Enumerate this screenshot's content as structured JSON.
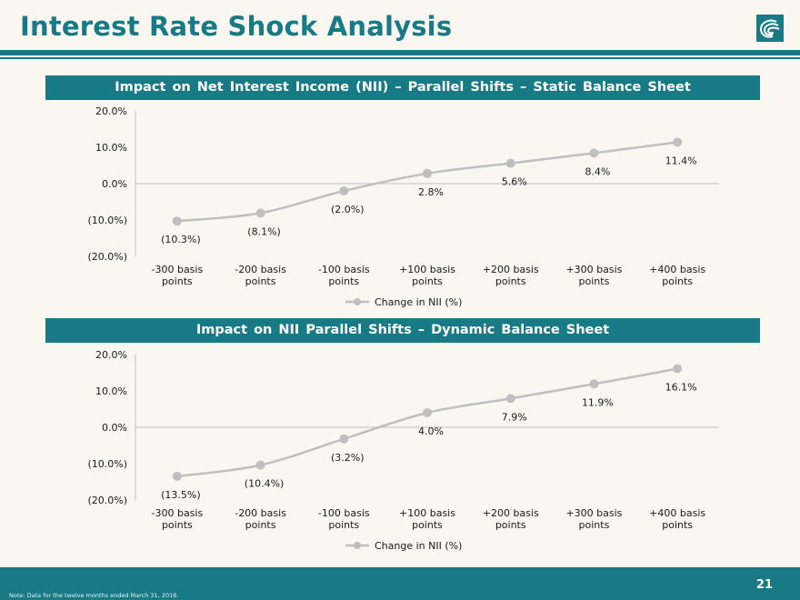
{
  "page": {
    "title": "Interest Rate Shock Analysis",
    "page_number": "21",
    "note": "Note: Data for the twelve months ended March 31, 2018.",
    "logo": "company-logo-icon"
  },
  "colors": {
    "brand": "#177a85",
    "line": "#bfbfbf",
    "marker": "#bfbfbf",
    "background": "#faf7f1"
  },
  "chart_data": [
    {
      "type": "line",
      "title": "Impact on Net Interest Income (NII) – Parallel Shifts – Static Balance Sheet",
      "categories": [
        "-300 basis points",
        "-200 basis points",
        "-100 basis points",
        "+100 basis points",
        "+200 basis points",
        "+300 basis points",
        "+400 basis points"
      ],
      "category_lines": [
        [
          "-300 basis",
          "points"
        ],
        [
          "-200 basis",
          "points"
        ],
        [
          "-100 basis",
          "points"
        ],
        [
          "+100 basis",
          "points"
        ],
        [
          "+200 basis",
          "points"
        ],
        [
          "+300 basis",
          "points"
        ],
        [
          "+400 basis",
          "points"
        ]
      ],
      "series": [
        {
          "name": "Change in NII (%)",
          "values": [
            -10.3,
            -8.1,
            -2.0,
            2.8,
            5.6,
            8.4,
            11.4
          ]
        }
      ],
      "data_labels": [
        "(10.3%)",
        "(8.1%)",
        "(2.0%)",
        "2.8%",
        "5.6%",
        "8.4%",
        "11.4%"
      ],
      "y_ticks": [
        20,
        10,
        0,
        -10,
        -20
      ],
      "y_tick_labels": [
        "20.0%",
        "10.0%",
        "0.0%",
        "(10.0%)",
        "(20.0%)"
      ],
      "ylim": [
        -20,
        20
      ],
      "grid": false,
      "legend": "bottom",
      "smooth": true
    },
    {
      "type": "line",
      "title": "Impact on NII Parallel Shifts – Dynamic Balance Sheet",
      "categories": [
        "-300 basis points",
        "-200 basis points",
        "-100 basis points",
        "+100 basis points",
        "+200 basis points",
        "+300 basis points",
        "+400 basis points"
      ],
      "category_lines": [
        [
          "-300 basis",
          "points"
        ],
        [
          "-200 basis",
          "points"
        ],
        [
          "-100 basis",
          "points"
        ],
        [
          "+100 basis",
          "points"
        ],
        [
          "+200 basis",
          "points"
        ],
        [
          "+300 basis",
          "points"
        ],
        [
          "+400 basis",
          "points"
        ]
      ],
      "series": [
        {
          "name": "Change in NII (%)",
          "values": [
            -13.5,
            -10.4,
            -3.2,
            4.0,
            7.9,
            11.9,
            16.1
          ]
        }
      ],
      "data_labels": [
        "(13.5%)",
        "(10.4%)",
        "(3.2%)",
        "4.0%",
        "7.9%",
        "11.9%",
        "16.1%"
      ],
      "y_ticks": [
        20,
        10,
        0,
        -10,
        -20
      ],
      "y_tick_labels": [
        "20.0%",
        "10.0%",
        "0.0%",
        "(10.0%)",
        "(20.0%)"
      ],
      "ylim": [
        -20,
        20
      ],
      "grid": false,
      "legend": "bottom",
      "smooth": true
    }
  ]
}
